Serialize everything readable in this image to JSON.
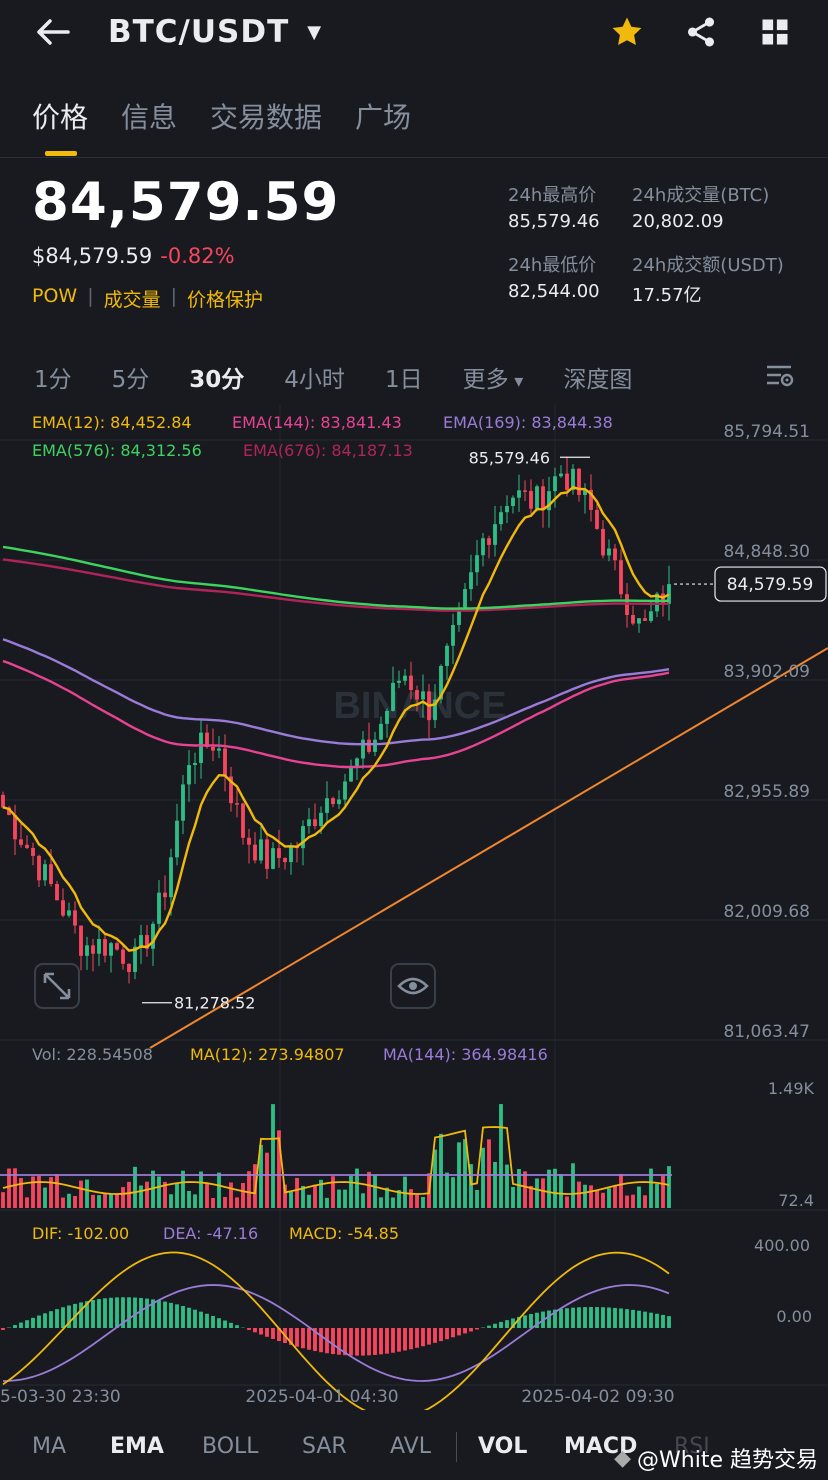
{
  "header": {
    "pair": "BTC/USDT",
    "icons": [
      "back-arrow-icon",
      "dropdown-caret-icon",
      "star-icon",
      "share-icon",
      "grid-icon"
    ],
    "favorite_color": "#f0b90b"
  },
  "tabs": [
    "价格",
    "信息",
    "交易数据",
    "广场"
  ],
  "ticker": {
    "last_price": "84,579.59",
    "usd_price": "$84,579.59",
    "change": "-0.82%",
    "tags": [
      "POW",
      "成交量",
      "价格保护"
    ],
    "stats": {
      "high_label": "24h最高价",
      "high": "85,579.46",
      "vol_btc_label": "24h成交量(BTC)",
      "vol_btc": "20,802.09",
      "low_label": "24h最低价",
      "low": "82,544.00",
      "vol_usdt_label": "24h成交额(USDT)",
      "vol_usdt": "17.57亿"
    }
  },
  "timeframes": [
    "1分",
    "5分",
    "30分",
    "4小时",
    "1日",
    "更多",
    "深度图"
  ],
  "active_timeframe": "30分",
  "colors": {
    "up": "#2ebd85",
    "down": "#f6465d",
    "accent": "#f0b90b"
  },
  "chart_data": {
    "type": "candlestick",
    "symbol": "BTC/USDT",
    "interval": "30分",
    "watermark": "BINANCE",
    "ema_legend": [
      {
        "label": "EMA(12): 84,452.84",
        "value": 84452.84,
        "color": "#f0b90b"
      },
      {
        "label": "EMA(144): 83,841.43",
        "value": 83841.43,
        "color": "#e84393"
      },
      {
        "label": "EMA(169): 83,844.38",
        "value": 83844.38,
        "color": "#9b7bd8"
      },
      {
        "label": "EMA(576): 84,312.56",
        "value": 84312.56,
        "color": "#3ed35f"
      },
      {
        "label": "EMA(676): 84,187.13",
        "value": 84187.13,
        "color": "#b0245a"
      }
    ],
    "y_ticks": [
      "85,794.51",
      "84,848.30",
      "83,902.09",
      "82,955.89",
      "82,009.68",
      "81,063.47"
    ],
    "ylim": [
      81063.47,
      85794.51
    ],
    "last_price_label": "84,579.59",
    "last_price": 84579.59,
    "high_marker": {
      "label": "85,579.46",
      "value": 85579.46
    },
    "low_marker": {
      "label": "81,278.52",
      "value": 81278.52
    },
    "price_series": [
      {
        "x": "2025-03-30 23:30",
        "close": 82820
      },
      {
        "x": "2025-03-31 03:00",
        "close": 82480
      },
      {
        "x": "2025-03-31 07:00",
        "close": 82120
      },
      {
        "x": "2025-03-31 10:00",
        "close": 81730
      },
      {
        "x": "2025-03-31 12:00",
        "close": 81740
      },
      {
        "x": "2025-03-31 14:00",
        "close": 81600
      },
      {
        "x": "2025-03-31 16:00",
        "close": 82100
      },
      {
        "x": "2025-03-31 18:00",
        "close": 83230
      },
      {
        "x": "2025-03-31 20:00",
        "close": 83350
      },
      {
        "x": "2025-03-31 22:00",
        "close": 82620
      },
      {
        "x": "2025-04-01 00:00",
        "close": 82380
      },
      {
        "x": "2025-04-01 02:00",
        "close": 82510
      },
      {
        "x": "2025-04-01 04:30",
        "close": 82870
      },
      {
        "x": "2025-04-01 07:00",
        "close": 83080
      },
      {
        "x": "2025-04-01 09:00",
        "close": 83380
      },
      {
        "x": "2025-04-01 11:00",
        "close": 83900
      },
      {
        "x": "2025-04-01 13:00",
        "close": 83600
      },
      {
        "x": "2025-04-01 15:00",
        "close": 84200
      },
      {
        "x": "2025-04-01 16:30",
        "close": 84920
      },
      {
        "x": "2025-04-01 18:30",
        "close": 85300
      },
      {
        "x": "2025-04-01 21:00",
        "close": 85220
      },
      {
        "x": "2025-04-01 23:30",
        "close": 85480
      },
      {
        "x": "2025-04-02 02:00",
        "close": 85180
      },
      {
        "x": "2025-04-02 04:30",
        "close": 84650
      },
      {
        "x": "2025-04-02 07:00",
        "close": 84200
      },
      {
        "x": "2025-04-02 09:30",
        "close": 84579.59
      }
    ],
    "volume": {
      "legend": [
        "Vol: 228.54508",
        "MA(12): 273.94807",
        "MA(144): 364.98416"
      ],
      "y_ticks": [
        "1.49K",
        "72.4"
      ]
    },
    "macd": {
      "legend": [
        "DIF: -102.00",
        "DEA: -47.16",
        "MACD: -54.85"
      ],
      "y_ticks": [
        "400.00",
        "0.00"
      ],
      "dif": -102.0,
      "dea": -47.16,
      "hist": -54.85
    },
    "x_ticks": [
      "5-03-30 23:30",
      "2025-04-01 04:30",
      "2025-04-02 09:30"
    ]
  },
  "indicators": [
    "MA",
    "EMA",
    "BOLL",
    "SAR",
    "AVL",
    "VOL",
    "MACD",
    "RSI"
  ],
  "active_indicators": [
    "EMA",
    "VOL",
    "MACD"
  ],
  "watermark_text": "@White 趋势交易"
}
